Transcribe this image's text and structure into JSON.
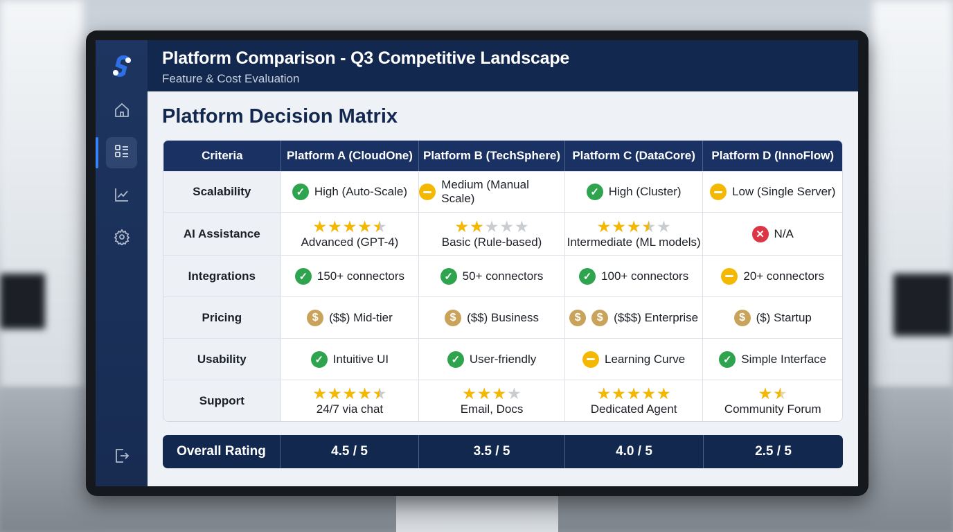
{
  "header": {
    "title": "Platform Comparison - Q3 Competitive Landscape",
    "subtitle": "Feature & Cost Evaluation"
  },
  "sidebar": {
    "items": [
      {
        "icon": "home-icon"
      },
      {
        "icon": "list-icon",
        "active": true
      },
      {
        "icon": "chart-icon"
      },
      {
        "icon": "gear-icon"
      },
      {
        "icon": "logout-icon"
      }
    ]
  },
  "page_title": "Platform Decision Matrix",
  "table": {
    "columns": [
      "Criteria",
      "Platform A (CloudOne)",
      "Platform B (TechSphere)",
      "Platform C (DataCore)",
      "Platform D (InnoFlow)"
    ],
    "rows": [
      {
        "criteria": "Scalability",
        "cells": [
          {
            "status": "ok",
            "text": "High (Auto-Scale)"
          },
          {
            "status": "mid",
            "text": "Medium (Manual Scale)"
          },
          {
            "status": "ok",
            "text": "High (Cluster)"
          },
          {
            "status": "mid",
            "text": "Low (Single Server)"
          }
        ]
      },
      {
        "criteria": "AI Assistance",
        "cells": [
          {
            "rating": 4.5,
            "stars_shown": 5,
            "text": "Advanced (GPT-4)"
          },
          {
            "rating": 2,
            "stars_shown": 5,
            "text": "Basic (Rule-based)"
          },
          {
            "rating": 3.5,
            "stars_shown": 5,
            "text": "Intermediate (ML models)"
          },
          {
            "status": "no",
            "text": "N/A"
          }
        ]
      },
      {
        "criteria": "Integrations",
        "cells": [
          {
            "status": "ok",
            "text": "150+ connectors"
          },
          {
            "status": "ok",
            "text": "50+ connectors"
          },
          {
            "status": "ok",
            "text": "100+ connectors"
          },
          {
            "status": "mid",
            "text": "20+ connectors"
          }
        ]
      },
      {
        "criteria": "Pricing",
        "cells": [
          {
            "coins": 1,
            "text": "($$) Mid-tier"
          },
          {
            "coins": 1,
            "text": "($$) Business"
          },
          {
            "coins": 2,
            "text": "($$$) Enterprise"
          },
          {
            "coins": 1,
            "text": "($) Startup"
          }
        ]
      },
      {
        "criteria": "Usability",
        "cells": [
          {
            "status": "ok",
            "text": "Intuitive UI"
          },
          {
            "status": "ok",
            "text": "User-friendly"
          },
          {
            "status": "mid",
            "text": "Learning Curve"
          },
          {
            "status": "ok",
            "text": "Simple Interface"
          }
        ]
      },
      {
        "criteria": "Support",
        "cells": [
          {
            "rating": 4.5,
            "stars_shown": 5,
            "text": "24/7 via chat"
          },
          {
            "rating": 3,
            "stars_shown": 4,
            "text": "Email, Docs"
          },
          {
            "rating": 5,
            "stars_shown": 5,
            "text": "Dedicated Agent"
          },
          {
            "rating": 1.5,
            "stars_shown": 2,
            "text": "Community Forum"
          }
        ]
      }
    ]
  },
  "overall": {
    "label": "Overall Rating",
    "values": [
      "4.5 / 5",
      "3.5 / 5",
      "4.0 / 5",
      "2.5 / 5"
    ]
  },
  "colors": {
    "navy": "#13284e",
    "ok": "#2ea44f",
    "warn": "#f5b800",
    "error": "#dc3545",
    "coin": "#c9a35a",
    "star": "#f5b800",
    "accent": "#3b82f6"
  }
}
